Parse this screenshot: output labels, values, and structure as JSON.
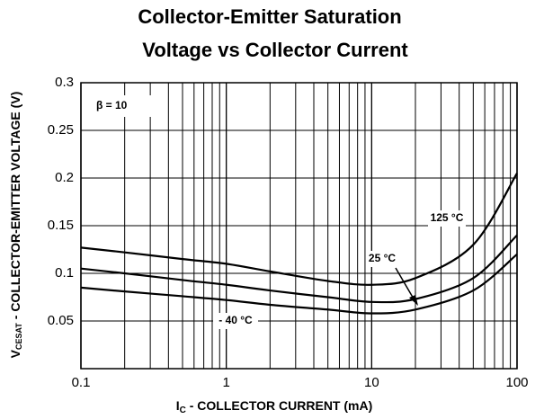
{
  "chart_data": {
    "type": "line",
    "title": [
      "Collector-Emitter Saturation",
      "Voltage vs Collector Current"
    ],
    "xlabel": {
      "main": "I",
      "sub": "C",
      "rest": " - COLLECTOR CURRENT  (mA)"
    },
    "ylabel": {
      "main": "V",
      "sub": "CESAT",
      "rest": " - COLLECTOR-EMITTER VOLTAGE (V)"
    },
    "annotation": "β = 10",
    "x": [
      0.1,
      0.2,
      0.5,
      1,
      2,
      5,
      10,
      20,
      50,
      100
    ],
    "series": [
      {
        "name": "125 °C",
        "color": "#000000",
        "values": [
          0.127,
          0.122,
          0.115,
          0.11,
          0.102,
          0.092,
          0.088,
          0.095,
          0.13,
          0.205
        ]
      },
      {
        "name": "25 °C",
        "color": "#000000",
        "values": [
          0.105,
          0.1,
          0.093,
          0.088,
          0.082,
          0.075,
          0.07,
          0.073,
          0.095,
          0.14
        ]
      },
      {
        "name": "- 40 °C",
        "color": "#000000",
        "values": [
          0.085,
          0.081,
          0.076,
          0.072,
          0.067,
          0.062,
          0.058,
          0.062,
          0.082,
          0.12
        ]
      }
    ],
    "xscale": "log",
    "xlim": [
      0.1,
      100
    ],
    "xticks": [
      0.1,
      1,
      10,
      100
    ],
    "x_minor_ticks": [
      0.2,
      0.3,
      0.4,
      0.5,
      0.6,
      0.7,
      0.8,
      0.9,
      2,
      3,
      4,
      5,
      6,
      7,
      8,
      9,
      20,
      30,
      40,
      50,
      60,
      70,
      80,
      90
    ],
    "ylim": [
      0,
      0.3
    ],
    "yticks": [
      0.05,
      0.1,
      0.15,
      0.2,
      0.25,
      0.3
    ],
    "grid": true
  }
}
